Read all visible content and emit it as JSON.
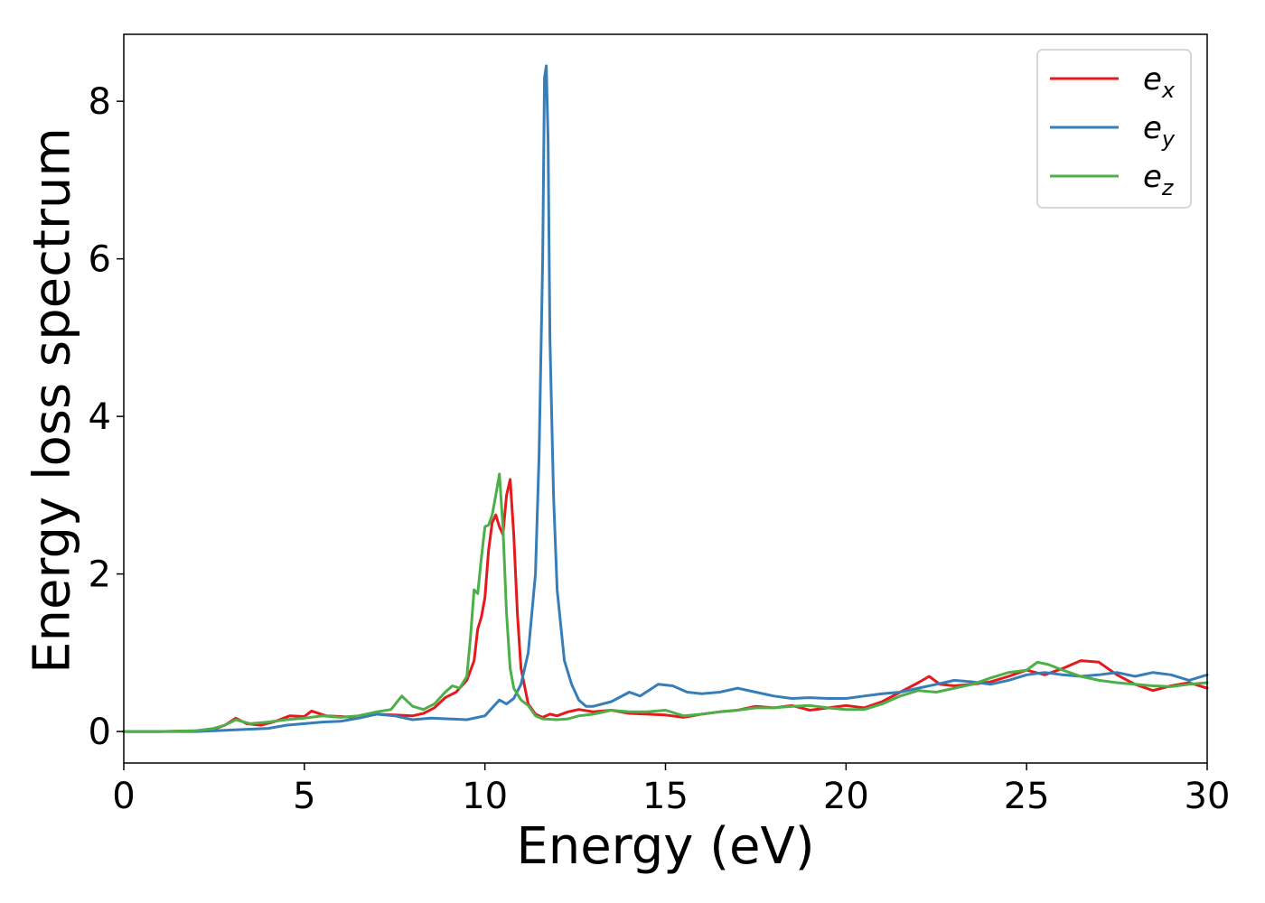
{
  "chart_data": {
    "type": "line",
    "xlabel": "Energy (eV)",
    "ylabel": "Energy loss spectrum",
    "xlim": [
      0,
      30
    ],
    "ylim": [
      -0.4,
      8.85
    ],
    "xticks": [
      0,
      5,
      10,
      15,
      20,
      25,
      30
    ],
    "yticks": [
      0,
      2,
      4,
      6,
      8
    ],
    "grid": false,
    "legend_position": "top-right",
    "series": [
      {
        "name": "e",
        "subscript": "x",
        "color": "#e41a1c",
        "points": [
          [
            0,
            0
          ],
          [
            1,
            0.0
          ],
          [
            2,
            0.01
          ],
          [
            2.5,
            0.03
          ],
          [
            2.8,
            0.08
          ],
          [
            3.1,
            0.17
          ],
          [
            3.4,
            0.1
          ],
          [
            3.8,
            0.08
          ],
          [
            4.2,
            0.13
          ],
          [
            4.6,
            0.2
          ],
          [
            5.0,
            0.19
          ],
          [
            5.2,
            0.26
          ],
          [
            5.6,
            0.2
          ],
          [
            6.0,
            0.19
          ],
          [
            6.5,
            0.18
          ],
          [
            7.0,
            0.22
          ],
          [
            7.5,
            0.21
          ],
          [
            8.0,
            0.2
          ],
          [
            8.3,
            0.23
          ],
          [
            8.6,
            0.3
          ],
          [
            8.9,
            0.43
          ],
          [
            9.2,
            0.5
          ],
          [
            9.5,
            0.65
          ],
          [
            9.7,
            0.9
          ],
          [
            9.8,
            1.3
          ],
          [
            9.9,
            1.45
          ],
          [
            10.0,
            1.7
          ],
          [
            10.1,
            2.3
          ],
          [
            10.2,
            2.65
          ],
          [
            10.3,
            2.75
          ],
          [
            10.4,
            2.6
          ],
          [
            10.5,
            2.5
          ],
          [
            10.6,
            3.0
          ],
          [
            10.7,
            3.2
          ],
          [
            10.8,
            2.5
          ],
          [
            10.9,
            1.5
          ],
          [
            11.0,
            0.8
          ],
          [
            11.2,
            0.35
          ],
          [
            11.4,
            0.22
          ],
          [
            11.6,
            0.18
          ],
          [
            11.8,
            0.22
          ],
          [
            12.0,
            0.2
          ],
          [
            12.3,
            0.25
          ],
          [
            12.6,
            0.28
          ],
          [
            13.0,
            0.25
          ],
          [
            13.5,
            0.27
          ],
          [
            14.0,
            0.23
          ],
          [
            14.5,
            0.22
          ],
          [
            15.0,
            0.21
          ],
          [
            15.5,
            0.18
          ],
          [
            16.0,
            0.22
          ],
          [
            16.5,
            0.25
          ],
          [
            17.0,
            0.27
          ],
          [
            17.5,
            0.32
          ],
          [
            18.0,
            0.3
          ],
          [
            18.5,
            0.33
          ],
          [
            19.0,
            0.27
          ],
          [
            19.5,
            0.3
          ],
          [
            20.0,
            0.33
          ],
          [
            20.5,
            0.3
          ],
          [
            21.0,
            0.38
          ],
          [
            21.5,
            0.5
          ],
          [
            22.0,
            0.62
          ],
          [
            22.3,
            0.7
          ],
          [
            22.6,
            0.6
          ],
          [
            23.0,
            0.58
          ],
          [
            23.5,
            0.6
          ],
          [
            24.0,
            0.63
          ],
          [
            24.5,
            0.7
          ],
          [
            25.0,
            0.78
          ],
          [
            25.5,
            0.72
          ],
          [
            26.0,
            0.8
          ],
          [
            26.5,
            0.9
          ],
          [
            27.0,
            0.88
          ],
          [
            27.5,
            0.72
          ],
          [
            28.0,
            0.6
          ],
          [
            28.5,
            0.52
          ],
          [
            29.0,
            0.58
          ],
          [
            29.5,
            0.62
          ],
          [
            30.0,
            0.55
          ]
        ]
      },
      {
        "name": "e",
        "subscript": "y",
        "color": "#377eb8",
        "points": [
          [
            0,
            0
          ],
          [
            2,
            0.0
          ],
          [
            3,
            0.02
          ],
          [
            4,
            0.04
          ],
          [
            4.5,
            0.08
          ],
          [
            5.0,
            0.1
          ],
          [
            5.5,
            0.12
          ],
          [
            6.0,
            0.13
          ],
          [
            6.5,
            0.17
          ],
          [
            7.0,
            0.22
          ],
          [
            7.5,
            0.2
          ],
          [
            8.0,
            0.15
          ],
          [
            8.5,
            0.17
          ],
          [
            9.0,
            0.16
          ],
          [
            9.5,
            0.15
          ],
          [
            10.0,
            0.2
          ],
          [
            10.2,
            0.3
          ],
          [
            10.4,
            0.4
          ],
          [
            10.6,
            0.35
          ],
          [
            10.8,
            0.42
          ],
          [
            11.0,
            0.6
          ],
          [
            11.2,
            1.0
          ],
          [
            11.4,
            2.0
          ],
          [
            11.5,
            3.5
          ],
          [
            11.6,
            6.0
          ],
          [
            11.65,
            8.3
          ],
          [
            11.7,
            8.45
          ],
          [
            11.75,
            7.5
          ],
          [
            11.8,
            5.0
          ],
          [
            11.9,
            3.0
          ],
          [
            12.0,
            1.8
          ],
          [
            12.2,
            0.9
          ],
          [
            12.4,
            0.6
          ],
          [
            12.6,
            0.4
          ],
          [
            12.8,
            0.32
          ],
          [
            13.0,
            0.32
          ],
          [
            13.5,
            0.38
          ],
          [
            14.0,
            0.5
          ],
          [
            14.3,
            0.45
          ],
          [
            14.8,
            0.6
          ],
          [
            15.2,
            0.58
          ],
          [
            15.6,
            0.5
          ],
          [
            16.0,
            0.48
          ],
          [
            16.5,
            0.5
          ],
          [
            17.0,
            0.55
          ],
          [
            17.5,
            0.5
          ],
          [
            18.0,
            0.45
          ],
          [
            18.5,
            0.42
          ],
          [
            19.0,
            0.43
          ],
          [
            19.5,
            0.42
          ],
          [
            20.0,
            0.42
          ],
          [
            20.5,
            0.45
          ],
          [
            21.0,
            0.48
          ],
          [
            21.5,
            0.5
          ],
          [
            22.0,
            0.55
          ],
          [
            22.5,
            0.6
          ],
          [
            23.0,
            0.65
          ],
          [
            23.5,
            0.63
          ],
          [
            24.0,
            0.6
          ],
          [
            24.5,
            0.65
          ],
          [
            25.0,
            0.72
          ],
          [
            25.5,
            0.75
          ],
          [
            26.0,
            0.72
          ],
          [
            26.5,
            0.7
          ],
          [
            27.0,
            0.72
          ],
          [
            27.5,
            0.75
          ],
          [
            28.0,
            0.7
          ],
          [
            28.5,
            0.75
          ],
          [
            29.0,
            0.72
          ],
          [
            29.5,
            0.65
          ],
          [
            30.0,
            0.72
          ]
        ]
      },
      {
        "name": "e",
        "subscript": "z",
        "color": "#4daf4a",
        "points": [
          [
            0,
            0
          ],
          [
            1,
            0.0
          ],
          [
            2,
            0.01
          ],
          [
            2.5,
            0.04
          ],
          [
            2.8,
            0.08
          ],
          [
            3.1,
            0.15
          ],
          [
            3.5,
            0.1
          ],
          [
            4.0,
            0.12
          ],
          [
            4.5,
            0.15
          ],
          [
            5.0,
            0.17
          ],
          [
            5.5,
            0.2
          ],
          [
            6.0,
            0.18
          ],
          [
            6.5,
            0.2
          ],
          [
            7.0,
            0.25
          ],
          [
            7.4,
            0.28
          ],
          [
            7.7,
            0.45
          ],
          [
            8.0,
            0.32
          ],
          [
            8.3,
            0.28
          ],
          [
            8.6,
            0.35
          ],
          [
            8.9,
            0.5
          ],
          [
            9.1,
            0.58
          ],
          [
            9.3,
            0.55
          ],
          [
            9.5,
            0.7
          ],
          [
            9.6,
            1.2
          ],
          [
            9.7,
            1.8
          ],
          [
            9.8,
            1.75
          ],
          [
            9.9,
            2.2
          ],
          [
            10.0,
            2.6
          ],
          [
            10.1,
            2.62
          ],
          [
            10.2,
            2.75
          ],
          [
            10.3,
            3.0
          ],
          [
            10.4,
            3.27
          ],
          [
            10.5,
            2.6
          ],
          [
            10.6,
            1.5
          ],
          [
            10.7,
            0.8
          ],
          [
            10.8,
            0.55
          ],
          [
            11.0,
            0.4
          ],
          [
            11.2,
            0.33
          ],
          [
            11.4,
            0.2
          ],
          [
            11.6,
            0.16
          ],
          [
            12.0,
            0.15
          ],
          [
            12.3,
            0.16
          ],
          [
            12.6,
            0.2
          ],
          [
            13.0,
            0.22
          ],
          [
            13.5,
            0.27
          ],
          [
            14.0,
            0.25
          ],
          [
            14.5,
            0.25
          ],
          [
            15.0,
            0.27
          ],
          [
            15.5,
            0.2
          ],
          [
            16.0,
            0.22
          ],
          [
            16.5,
            0.25
          ],
          [
            17.0,
            0.27
          ],
          [
            17.5,
            0.3
          ],
          [
            18.0,
            0.3
          ],
          [
            18.5,
            0.32
          ],
          [
            19.0,
            0.33
          ],
          [
            19.5,
            0.3
          ],
          [
            20.0,
            0.28
          ],
          [
            20.5,
            0.28
          ],
          [
            21.0,
            0.35
          ],
          [
            21.5,
            0.45
          ],
          [
            22.0,
            0.52
          ],
          [
            22.5,
            0.5
          ],
          [
            23.0,
            0.55
          ],
          [
            23.5,
            0.6
          ],
          [
            24.0,
            0.68
          ],
          [
            24.5,
            0.75
          ],
          [
            25.0,
            0.78
          ],
          [
            25.3,
            0.88
          ],
          [
            25.6,
            0.85
          ],
          [
            26.0,
            0.78
          ],
          [
            26.5,
            0.7
          ],
          [
            27.0,
            0.65
          ],
          [
            27.5,
            0.62
          ],
          [
            28.0,
            0.6
          ],
          [
            28.5,
            0.58
          ],
          [
            29.0,
            0.57
          ],
          [
            29.5,
            0.6
          ],
          [
            30.0,
            0.62
          ]
        ]
      }
    ]
  }
}
